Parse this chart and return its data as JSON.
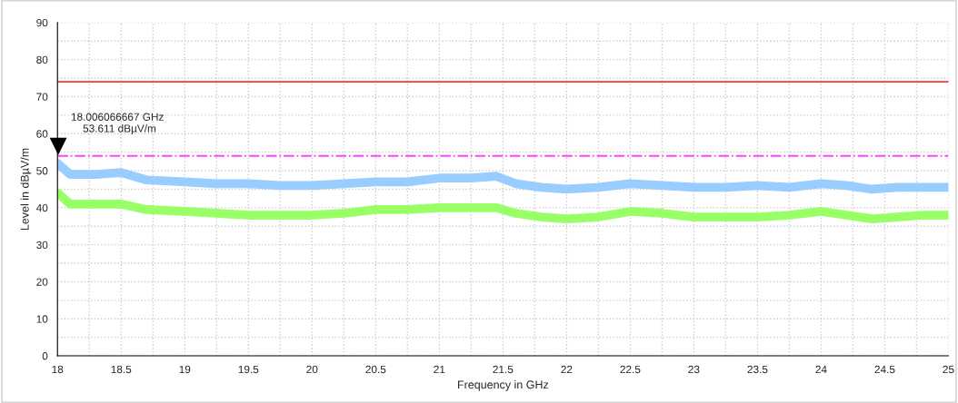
{
  "chart_data": {
    "type": "line",
    "xlabel": "Frequency in GHz",
    "ylabel": "Level in dBµV/m",
    "x": [
      18,
      18.1,
      18.3,
      18.5,
      18.7,
      19,
      19.25,
      19.5,
      19.75,
      20,
      20.25,
      20.5,
      20.75,
      21,
      21.25,
      21.45,
      21.6,
      21.8,
      22,
      22.25,
      22.5,
      22.75,
      23,
      23.25,
      23.5,
      23.75,
      24,
      24.2,
      24.4,
      24.6,
      24.8,
      25
    ],
    "series": [
      {
        "color": "#99ccff",
        "values": [
          52,
          49,
          49,
          49.5,
          47.5,
          47,
          46.5,
          46.5,
          46,
          46,
          46.5,
          47,
          47,
          48,
          48,
          48.5,
          46.5,
          45.5,
          45,
          45.5,
          46.5,
          46,
          45.5,
          45.5,
          46,
          45.5,
          46.5,
          46,
          45,
          45.5,
          45.5,
          45.5
        ]
      },
      {
        "color": "#99ff66",
        "values": [
          44,
          41,
          41,
          41,
          39.5,
          39,
          38.5,
          38,
          38,
          38,
          38.5,
          39.5,
          39.5,
          40,
          40,
          40,
          38.5,
          37.5,
          37,
          37.5,
          39,
          38.5,
          37.5,
          37.5,
          37.5,
          38,
          39,
          38,
          37,
          37.5,
          38,
          38
        ]
      }
    ],
    "xlim": [
      18,
      25
    ],
    "xticks": [
      18,
      {
        "value": 18.25,
        "label": null
      },
      18.5,
      {
        "value": 18.75,
        "label": null
      },
      19,
      {
        "value": 19.25,
        "label": null
      },
      19.5,
      {
        "value": 19.75,
        "label": null
      },
      20,
      {
        "value": 20.25,
        "label": null
      },
      20.5,
      {
        "value": 20.75,
        "label": null
      },
      21,
      {
        "value": 21.25,
        "label": null
      },
      21.5,
      {
        "value": 21.75,
        "label": null
      },
      22,
      {
        "value": 22.25,
        "label": null
      },
      22.5,
      {
        "value": 22.75,
        "label": null
      },
      23,
      {
        "value": 23.25,
        "label": null
      },
      23.5,
      {
        "value": 23.75,
        "label": null
      },
      24,
      {
        "value": 24.25,
        "label": null
      },
      24.5,
      {
        "value": 24.75,
        "label": null
      },
      25
    ],
    "ylim": [
      0,
      90
    ],
    "yticks": [
      0,
      {
        "value": 5,
        "label": null
      },
      10,
      {
        "value": 15,
        "label": null
      },
      20,
      {
        "value": 25,
        "label": null
      },
      30,
      {
        "value": 35,
        "label": null
      },
      40,
      {
        "value": 45,
        "label": null
      },
      50,
      {
        "value": 55,
        "label": null
      },
      60,
      {
        "value": 65,
        "label": null
      },
      70,
      {
        "value": 75,
        "label": null
      },
      80,
      {
        "value": 85,
        "label": null
      },
      90
    ],
    "grid": true,
    "marker": "none",
    "line_style": "solid",
    "ref_lines": [
      {
        "axis": "y",
        "value": 74,
        "color": "#ff3333",
        "line_style": "solid"
      },
      {
        "axis": "y",
        "value": 54,
        "color": "#ff44ff",
        "line_style": "dashdot"
      }
    ],
    "annotations": [
      {
        "text": "18.006066667 GHz\n    53.611 dBµV/m",
        "x": 18.006066667,
        "y": 53.611
      }
    ]
  }
}
